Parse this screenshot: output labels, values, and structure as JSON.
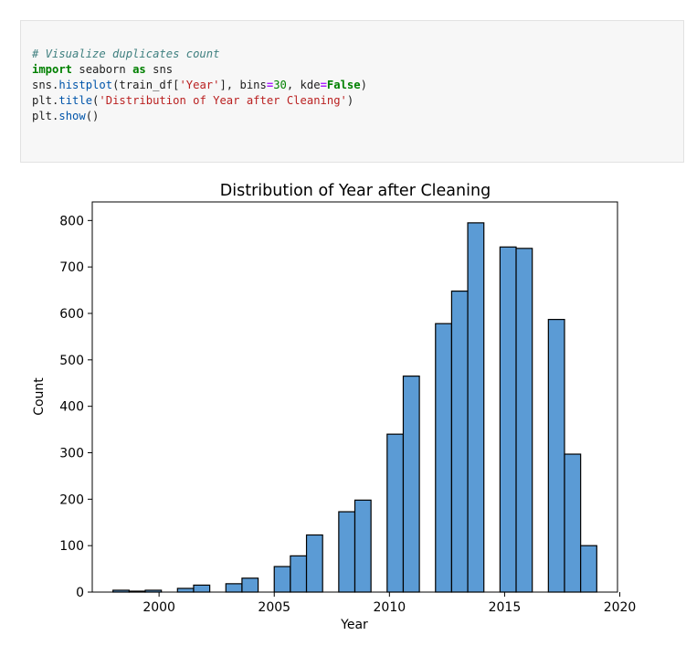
{
  "code_cell": {
    "comment": "# Visualize duplicates count",
    "import_kw": "import",
    "import_mod": "seaborn",
    "as_kw": "as",
    "alias": "sns",
    "call_obj": "sns.",
    "call_fn": "histplot",
    "call_open": "(train_df[",
    "call_str": "'Year'",
    "call_mid": "], bins",
    "eq1": "=",
    "bins_val": "30",
    "call_mid2": ", kde",
    "eq2": "=",
    "kde_val": "False",
    "call_close": ")",
    "title_obj": "plt.",
    "title_fn": "title",
    "title_open": "(",
    "title_str": "'Distribution of Year after Cleaning'",
    "title_close": ")",
    "show_obj": "plt.",
    "show_fn": "show",
    "show_close": "()"
  },
  "chart_data": {
    "type": "bar",
    "title": "Distribution of Year after Cleaning",
    "xlabel": "Year",
    "ylabel": "Count",
    "xlim": [
      1997.1,
      2019.9
    ],
    "ylim": [
      0,
      840
    ],
    "xticks": [
      2000,
      2005,
      2010,
      2015,
      2020
    ],
    "yticks": [
      0,
      100,
      200,
      300,
      400,
      500,
      600,
      700,
      800
    ],
    "bin_start": 1998,
    "bin_width": 0.7,
    "values": [
      4,
      2,
      4,
      0,
      8,
      15,
      0,
      18,
      30,
      0,
      55,
      78,
      123,
      0,
      173,
      198,
      0,
      340,
      465,
      0,
      578,
      648,
      795,
      0,
      743,
      740,
      0,
      587,
      297,
      100
    ],
    "bar_color": "#5b9bd5",
    "bar_edge": "#000000",
    "grid": false
  }
}
